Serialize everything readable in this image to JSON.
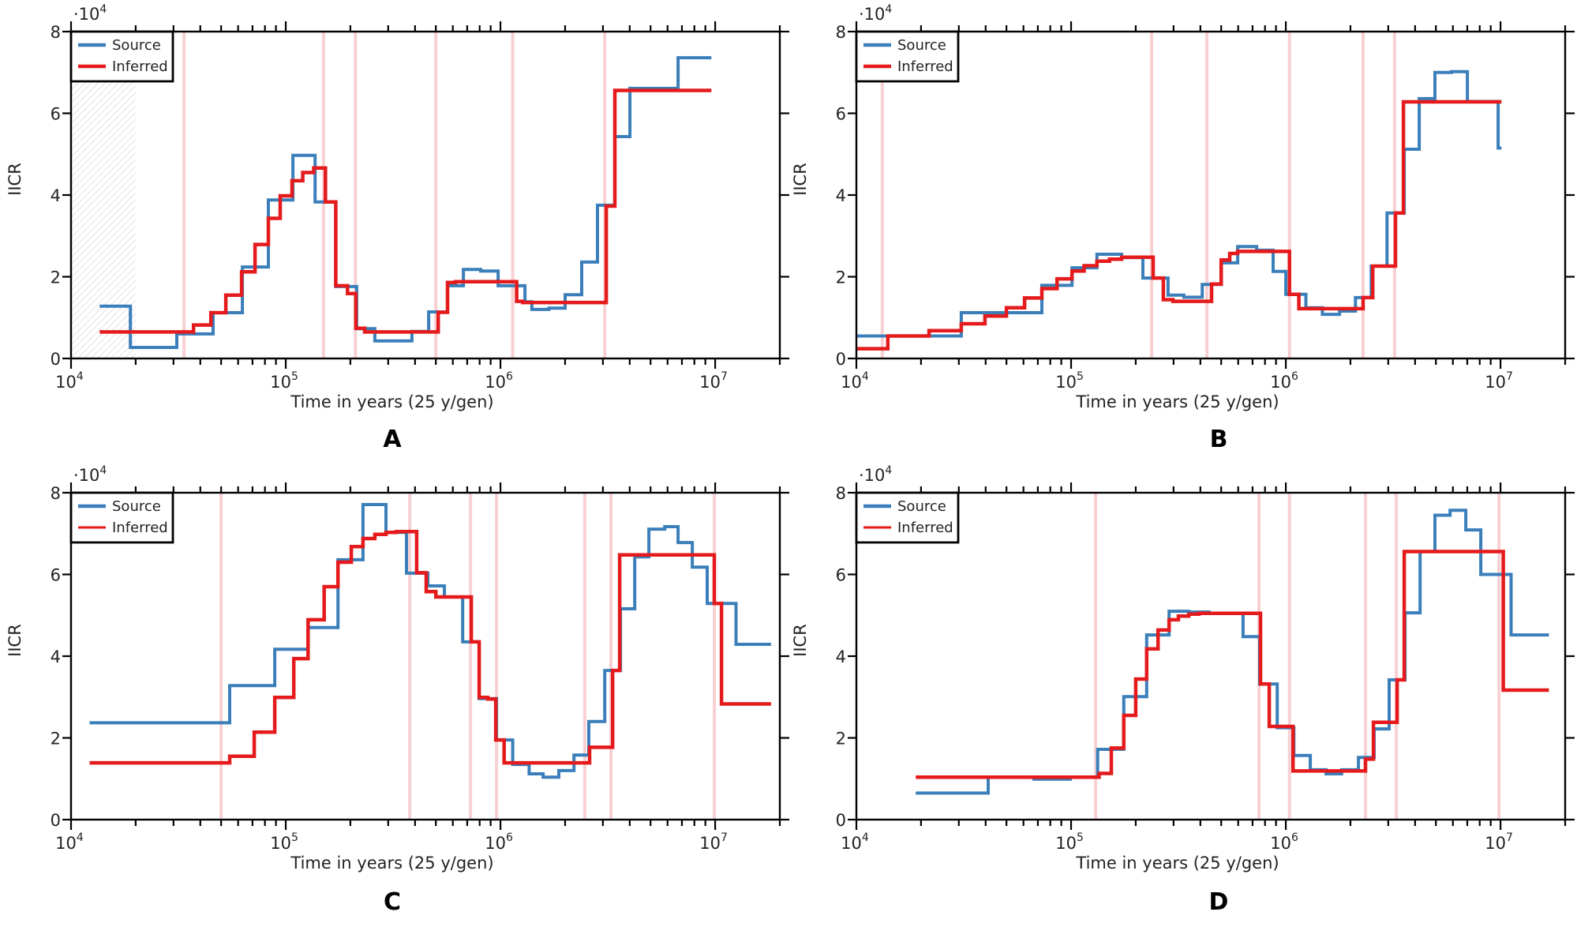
{
  "figure": {
    "panel_letters": [
      "A",
      "B",
      "C",
      "D"
    ]
  },
  "chart_data": [
    {
      "panel": "A",
      "type": "line",
      "step": true,
      "title": "",
      "xlabel": "Time in years (25 y/gen)",
      "ylabel": "IICR",
      "y_multiplier_label": "·10^4",
      "xscale": "log",
      "xlim": [
        10000,
        20000000
      ],
      "ylim": [
        0,
        8
      ],
      "x_tick_labels": [
        "10^4",
        "10^5",
        "10^6",
        "10^7"
      ],
      "y_tick_labels": [
        "0",
        "2",
        "4",
        "6",
        "8"
      ],
      "legend": [
        "Source",
        "Inferred"
      ],
      "legend_position": "top-left",
      "colors": {
        "Source": "#3a7fba",
        "Inferred": "#e41a1c",
        "markers": "#f8d0d2"
      },
      "shaded_region": {
        "x_from": 10000,
        "x_to": 20000,
        "style": "hatched"
      },
      "vertical_markers": [
        33600,
        150000,
        211000,
        500000,
        1140000,
        3060000
      ],
      "series": [
        {
          "name": "Source",
          "x": [
            13600,
            18900,
            31100,
            45900,
            62800,
            83000,
            108000,
            137000,
            171000,
            214000,
            260000,
            387000,
            463000,
            567000,
            672000,
            809000,
            975000,
            1300000,
            1400000,
            1680000,
            2000000,
            2390000,
            2830000,
            3410000,
            4010000,
            6720000
          ],
          "values": [
            1.28,
            0.27,
            0.6,
            1.12,
            2.24,
            3.88,
            4.97,
            3.83,
            1.76,
            0.73,
            0.43,
            0.66,
            1.14,
            1.78,
            2.18,
            2.14,
            1.78,
            1.39,
            1.2,
            1.23,
            1.56,
            2.36,
            3.75,
            5.43,
            6.61,
            7.36
          ],
          "x_end": 9600000
        },
        {
          "name": "Inferred",
          "x": [
            13600,
            37200,
            44800,
            52600,
            62300,
            71900,
            83000,
            94200,
            107000,
            120000,
            135000,
            153000,
            171000,
            194000,
            212000,
            233000,
            513000,
            567000,
            617000,
            1190000,
            1270000,
            3110000,
            3410000
          ],
          "values": [
            0.65,
            0.82,
            1.12,
            1.55,
            2.12,
            2.79,
            3.43,
            3.98,
            4.35,
            4.55,
            4.66,
            3.83,
            1.78,
            1.59,
            0.74,
            0.65,
            1.13,
            1.86,
            1.88,
            1.4,
            1.37,
            3.73,
            6.56
          ],
          "x_end": 9600000
        }
      ]
    },
    {
      "panel": "B",
      "type": "line",
      "step": true,
      "title": "",
      "xlabel": "Time in years (25 y/gen)",
      "ylabel": "IICR",
      "y_multiplier_label": "·10^4",
      "xscale": "log",
      "xlim": [
        10000,
        20000000
      ],
      "ylim": [
        0,
        8
      ],
      "x_tick_labels": [
        "10^4",
        "10^5",
        "10^6",
        "10^7"
      ],
      "y_tick_labels": [
        "0",
        "2",
        "4",
        "6",
        "8"
      ],
      "legend": [
        "Source",
        "Inferred"
      ],
      "legend_position": "top-left",
      "colors": {
        "Source": "#3a7fba",
        "Inferred": "#e41a1c",
        "markers": "#f8d0d2"
      },
      "vertical_markers": [
        13200,
        237000,
        429000,
        1040000,
        2290000,
        3210000
      ],
      "series": [
        {
          "name": "Source",
          "x": [
            10000,
            30800,
            73100,
            101000,
            132000,
            172000,
            216000,
            283000,
            335000,
            408000,
            500000,
            597000,
            731000,
            873000,
            1000000,
            1240000,
            1480000,
            1780000,
            2110000,
            2500000,
            2960000,
            3560000,
            4180000,
            4950000,
            5910000,
            7010000,
            9750000
          ],
          "values": [
            0.55,
            1.12,
            1.79,
            2.22,
            2.55,
            2.47,
            1.97,
            1.55,
            1.5,
            1.81,
            2.34,
            2.74,
            2.65,
            2.13,
            1.57,
            1.24,
            1.08,
            1.16,
            1.49,
            2.26,
            3.56,
            5.12,
            6.36,
            7.0,
            7.02,
            6.29,
            5.15
          ],
          "x_end": 10100000
        },
        {
          "name": "Inferred",
          "x": [
            10000,
            14000,
            21800,
            30800,
            39700,
            50000,
            60700,
            73100,
            86000,
            101000,
            115000,
            132000,
            151000,
            172000,
            241000,
            269000,
            298000,
            451000,
            500000,
            548000,
            597000,
            1040000,
            1150000,
            2290000,
            2540000,
            3240000,
            3530000
          ],
          "values": [
            0.24,
            0.55,
            0.68,
            0.85,
            1.04,
            1.24,
            1.48,
            1.71,
            1.95,
            2.14,
            2.27,
            2.38,
            2.43,
            2.48,
            1.97,
            1.44,
            1.4,
            1.82,
            2.41,
            2.57,
            2.62,
            1.57,
            1.22,
            1.49,
            2.26,
            3.56,
            6.28
          ],
          "x_end": 10100000
        }
      ]
    },
    {
      "panel": "C",
      "type": "line",
      "step": true,
      "title": "",
      "xlabel": "Time in years (25 y/gen)",
      "ylabel": "IICR",
      "y_multiplier_label": "·10^4",
      "xscale": "log",
      "xlim": [
        10000,
        20000000
      ],
      "ylim": [
        0,
        8
      ],
      "x_tick_labels": [
        "10^4",
        "10^5",
        "10^6",
        "10^7"
      ],
      "y_tick_labels": [
        "0",
        "2",
        "4",
        "6",
        "8"
      ],
      "legend": [
        "Source",
        "Inferred"
      ],
      "legend_position": "top-left",
      "colors": {
        "Source": "#3a7fba",
        "Inferred": "#e41a1c",
        "markers": "#f8d0d2"
      },
      "vertical_markers": [
        50000,
        378000,
        725000,
        959000,
        2470000,
        3270000,
        9910000
      ],
      "series": [
        {
          "name": "Source",
          "x": [
            12200,
            54800,
            88900,
            127000,
            175000,
            229000,
            293000,
            365000,
            459000,
            548000,
            667000,
            796000,
            959000,
            1140000,
            1360000,
            1580000,
            1870000,
            2200000,
            2580000,
            3060000,
            3620000,
            4220000,
            4910000,
            5820000,
            6720000,
            7820000,
            9180000,
            12500000
          ],
          "values": [
            2.37,
            3.28,
            4.17,
            4.7,
            6.36,
            7.71,
            7.03,
            6.03,
            5.72,
            5.45,
            4.35,
            2.96,
            1.95,
            1.35,
            1.12,
            1.04,
            1.2,
            1.58,
            2.4,
            3.65,
            5.16,
            6.43,
            7.11,
            7.17,
            6.78,
            6.18,
            5.29,
            4.29
          ],
          "x_end": 18200000
        },
        {
          "name": "Inferred",
          "x": [
            12200,
            54800,
            71300,
            88900,
            109000,
            127000,
            151000,
            175000,
            202000,
            229000,
            260000,
            293000,
            327000,
            407000,
            451000,
            500000,
            731000,
            796000,
            873000,
            951000,
            1040000,
            2600000,
            3330000,
            3590000,
            9910000,
            10700000
          ],
          "values": [
            1.39,
            1.55,
            2.14,
            2.99,
            3.94,
            4.89,
            5.7,
            6.3,
            6.68,
            6.88,
            6.98,
            7.03,
            7.05,
            6.04,
            5.58,
            5.45,
            4.35,
            2.99,
            2.95,
            1.95,
            1.39,
            1.77,
            3.65,
            6.48,
            5.29,
            2.83
          ],
          "x_end": 18200000
        }
      ]
    },
    {
      "panel": "D",
      "type": "line",
      "step": true,
      "title": "",
      "xlabel": "Time in years (25 y/gen)",
      "ylabel": "IICR",
      "y_multiplier_label": "·10^4",
      "xscale": "log",
      "xlim": [
        10000,
        20000000
      ],
      "ylim": [
        0,
        8
      ],
      "x_tick_labels": [
        "10^4",
        "10^5",
        "10^6",
        "10^7"
      ],
      "y_tick_labels": [
        "0",
        "2",
        "4",
        "6",
        "8"
      ],
      "legend": [
        "Source",
        "Inferred"
      ],
      "legend_position": "top-left",
      "colors": {
        "Source": "#3a7fba",
        "Inferred": "#e41a1c",
        "markers": "#f8d0d2"
      },
      "vertical_markers": [
        130000,
        750000,
        1040000,
        2350000,
        3270000,
        9840000
      ],
      "series": [
        {
          "name": "Source",
          "x": [
            18900,
            41100,
            67100,
            99100,
            133000,
            176000,
            225000,
            286000,
            353000,
            440000,
            632000,
            756000,
            912000,
            1090000,
            1300000,
            1540000,
            1820000,
            2180000,
            2580000,
            3030000,
            3590000,
            4220000,
            4950000,
            5820000,
            6890000,
            8090000,
            11200000
          ],
          "values": [
            0.65,
            1.04,
            0.99,
            1.04,
            1.72,
            3.01,
            4.52,
            5.1,
            5.08,
            5.05,
            4.48,
            3.32,
            2.25,
            1.57,
            1.22,
            1.12,
            1.22,
            1.52,
            2.22,
            3.42,
            5.06,
            6.56,
            7.45,
            7.57,
            7.09,
            6.0,
            4.52
          ],
          "x_end": 16800000
        },
        {
          "name": "Inferred",
          "x": [
            18900,
            135000,
            154000,
            176000,
            200000,
            225000,
            254000,
            286000,
            316000,
            353000,
            394000,
            762000,
            837000,
            1080000,
            2350000,
            2560000,
            3300000,
            3560000,
            10300000
          ],
          "values": [
            1.04,
            1.13,
            1.75,
            2.55,
            3.44,
            4.18,
            4.64,
            4.89,
            4.98,
            5.03,
            5.05,
            3.32,
            2.28,
            1.19,
            1.48,
            2.38,
            3.42,
            6.56,
            3.17
          ],
          "x_end": 16800000
        }
      ]
    }
  ]
}
